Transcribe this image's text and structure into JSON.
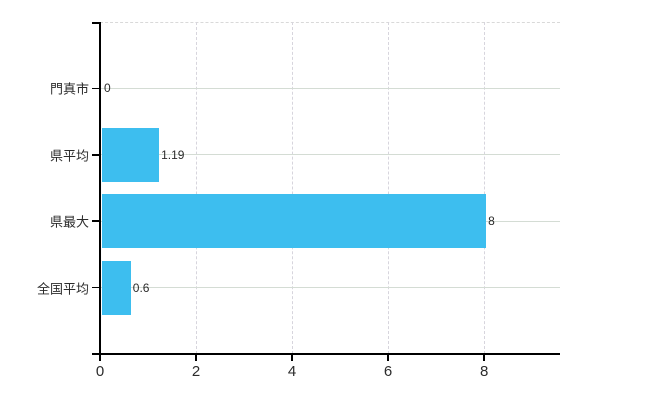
{
  "chart_data": {
    "type": "bar",
    "orientation": "horizontal",
    "title": "",
    "categories": [
      "門真市",
      "県平均",
      "県最大",
      "全国平均"
    ],
    "values": [
      0,
      1.19,
      8,
      0.6
    ],
    "value_labels": [
      "0",
      "1.19",
      "8",
      "0.6"
    ],
    "x_ticks": [
      0,
      2,
      4,
      6,
      8
    ],
    "x_tick_labels": [
      "0",
      "2",
      "4",
      "6",
      "8"
    ],
    "xlim": [
      0,
      9.58
    ],
    "ylabel": "",
    "xlabel": "",
    "grid": true,
    "legend": false,
    "colors": {
      "bar": "#3dbeef",
      "h_gridline": "#d4dcd4",
      "v_gridline": "#d7d5dd",
      "top_frame": "#d9d9d9",
      "axis": "#000000",
      "text": "#2b2b2b",
      "background": "#ffffff"
    }
  }
}
